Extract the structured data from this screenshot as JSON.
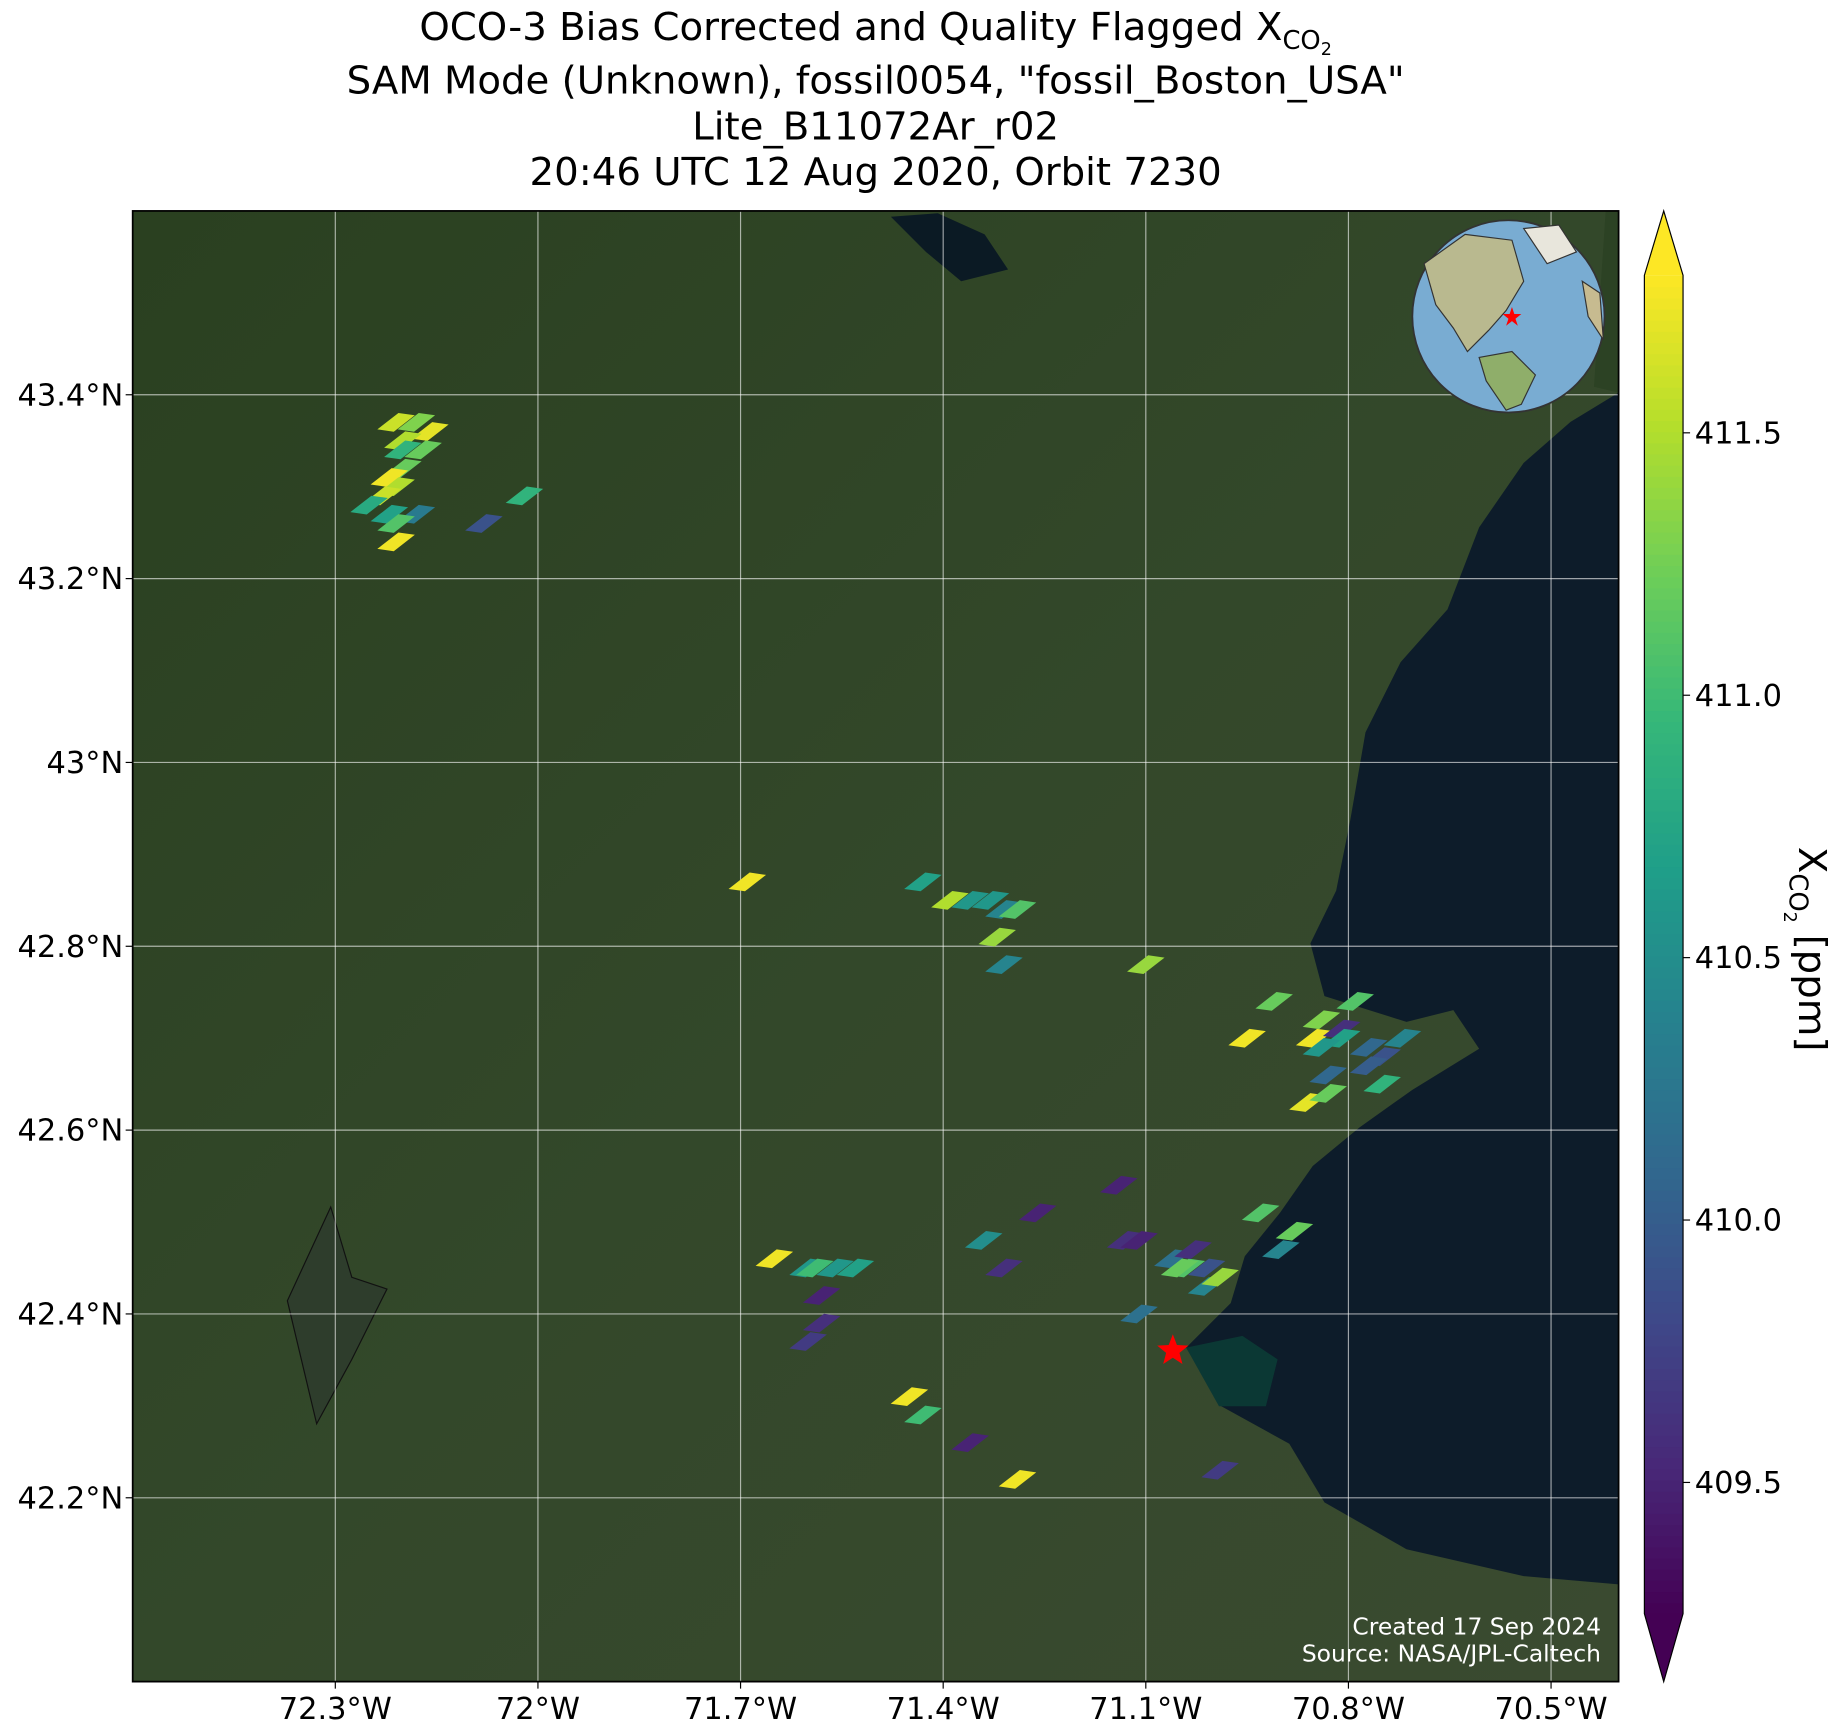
{
  "chart_data": {
    "type": "map",
    "title": {
      "main": "OCO-3 Bias Corrected and Quality Flagged X",
      "sub": "CO",
      "subsub": "2",
      "lines": [
        "SAM Mode (Unknown), fossil0054, \"fossil_Boston_USA\"",
        "Lite_B11072Ar_r02",
        "20:46 UTC 12 Aug 2020, Orbit 7230"
      ]
    },
    "xlim": [
      -72.6,
      -70.4
    ],
    "ylim": [
      42.0,
      43.6
    ],
    "xticks": [
      {
        "value": -72.3,
        "label": "72.3°W"
      },
      {
        "value": -72.0,
        "label": "72°W"
      },
      {
        "value": -71.7,
        "label": "71.7°W"
      },
      {
        "value": -71.4,
        "label": "71.4°W"
      },
      {
        "value": -71.1,
        "label": "71.1°W"
      },
      {
        "value": -70.8,
        "label": "70.8°W"
      },
      {
        "value": -70.5,
        "label": "70.5°W"
      }
    ],
    "yticks": [
      {
        "value": 42.2,
        "label": "42.2°N"
      },
      {
        "value": 42.4,
        "label": "42.4°N"
      },
      {
        "value": 42.6,
        "label": "42.6°N"
      },
      {
        "value": 42.8,
        "label": "42.8°N"
      },
      {
        "value": 43.0,
        "label": "43°N"
      },
      {
        "value": 43.2,
        "label": "43.2°N"
      },
      {
        "value": 43.4,
        "label": "43.4°N"
      }
    ],
    "grid": true,
    "lon": [
      -72.21,
      -72.18,
      -72.16,
      -72.2,
      -72.17,
      -72.2,
      -72.2,
      -72.22,
      -72.21,
      -72.23,
      -72.25,
      -72.22,
      -72.18,
      -72.21,
      -72.21,
      -72.08,
      -72.02,
      -71.69,
      -71.43,
      -71.39,
      -71.36,
      -71.33,
      -71.31,
      -71.29,
      -71.32,
      -71.31,
      -71.1,
      -70.91,
      -70.95,
      -70.84,
      -70.85,
      -70.81,
      -70.79,
      -70.81,
      -70.84,
      -70.77,
      -70.75,
      -70.72,
      -70.77,
      -70.75,
      -70.83,
      -70.86,
      -70.83,
      -70.93,
      -70.88,
      -70.9,
      -71.14,
      -71.26,
      -71.13,
      -71.11,
      -71.06,
      -71.04,
      -71.03,
      -71.01,
      -71.05,
      -71.01,
      -70.99,
      -71.11,
      -71.34,
      -71.31,
      -71.65,
      -71.6,
      -71.59,
      -71.56,
      -71.53,
      -71.58,
      -71.58,
      -71.6,
      -71.45,
      -71.43,
      -71.36,
      -71.29,
      -70.99
    ],
    "lat": [
      43.37,
      43.37,
      43.36,
      43.35,
      43.34,
      43.34,
      43.32,
      43.31,
      43.3,
      43.29,
      43.28,
      43.27,
      43.27,
      43.26,
      43.24,
      43.26,
      43.29,
      42.87,
      42.87,
      42.85,
      42.85,
      42.85,
      42.84,
      42.84,
      42.81,
      42.78,
      42.78,
      42.74,
      42.7,
      42.72,
      42.7,
      42.71,
      42.74,
      42.7,
      42.69,
      42.69,
      42.68,
      42.7,
      42.67,
      42.65,
      42.66,
      42.63,
      42.64,
      42.51,
      42.49,
      42.47,
      42.54,
      42.51,
      42.48,
      42.48,
      42.46,
      42.45,
      42.47,
      42.45,
      42.45,
      42.43,
      42.44,
      42.4,
      42.48,
      42.45,
      42.46,
      42.45,
      42.45,
      42.45,
      42.45,
      42.42,
      42.39,
      42.37,
      42.31,
      42.29,
      42.26,
      42.22,
      42.23
    ],
    "xco2": [
      411.6,
      411.3,
      411.7,
      411.5,
      411.2,
      410.9,
      411.2,
      411.75,
      411.5,
      411.6,
      410.8,
      410.7,
      410.3,
      411.1,
      411.75,
      409.9,
      410.9,
      411.75,
      410.7,
      411.5,
      410.6,
      410.6,
      410.4,
      411.1,
      411.4,
      410.4,
      411.4,
      411.2,
      411.75,
      411.3,
      411.75,
      409.6,
      411.1,
      410.7,
      410.6,
      410.1,
      409.9,
      410.4,
      410.0,
      410.9,
      410.1,
      411.7,
      411.2,
      411.1,
      411.2,
      410.4,
      409.5,
      409.5,
      409.6,
      409.5,
      410.2,
      411.1,
      409.6,
      409.9,
      411.2,
      410.4,
      411.4,
      410.2,
      410.5,
      409.6,
      411.75,
      410.6,
      411.0,
      410.6,
      410.7,
      409.5,
      409.6,
      409.7,
      411.75,
      411.0,
      409.5,
      411.75,
      409.7
    ],
    "target": {
      "lon": -71.06,
      "lat": 42.36,
      "color": "#ff0000"
    },
    "colormap": "viridis",
    "colorbar": {
      "clim": [
        409.25,
        411.8
      ],
      "extend": "both",
      "ticks": [
        409.5,
        {
          "value": 410.0,
          "label": "410.0"
        },
        410.5,
        {
          "value": 411.0,
          "label": "411.0"
        },
        411.5
      ],
      "label": "X",
      "label_sub": "CO",
      "label_subsub": "2",
      "label_unit": "[ppm]"
    },
    "annotations": [
      "Created 17 Sep 2024",
      "Source: NASA/JPL-Caltech"
    ]
  }
}
